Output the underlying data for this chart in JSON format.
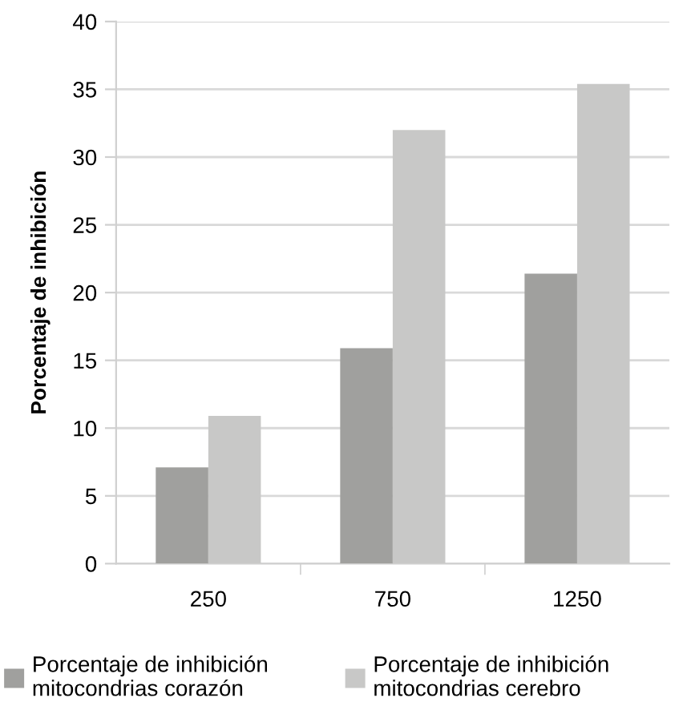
{
  "chart_data": {
    "type": "bar",
    "ylabel": "Porcentaje de inhibición",
    "categories": [
      "250",
      "750",
      "1250"
    ],
    "series": [
      {
        "name": "Porcentaje de inhibición mitocondrias corazón",
        "color": "#a0a09e",
        "values": [
          7.1,
          15.9,
          21.4
        ]
      },
      {
        "name": "Porcentaje de inhibición mitocondrias cerebro",
        "color": "#c8c8c7",
        "values": [
          10.9,
          32.0,
          35.4
        ]
      }
    ],
    "ylim": [
      0,
      40
    ],
    "yticks": [
      0,
      5,
      10,
      15,
      20,
      25,
      30,
      35,
      40
    ],
    "grid": "y",
    "legend": "bottom"
  }
}
